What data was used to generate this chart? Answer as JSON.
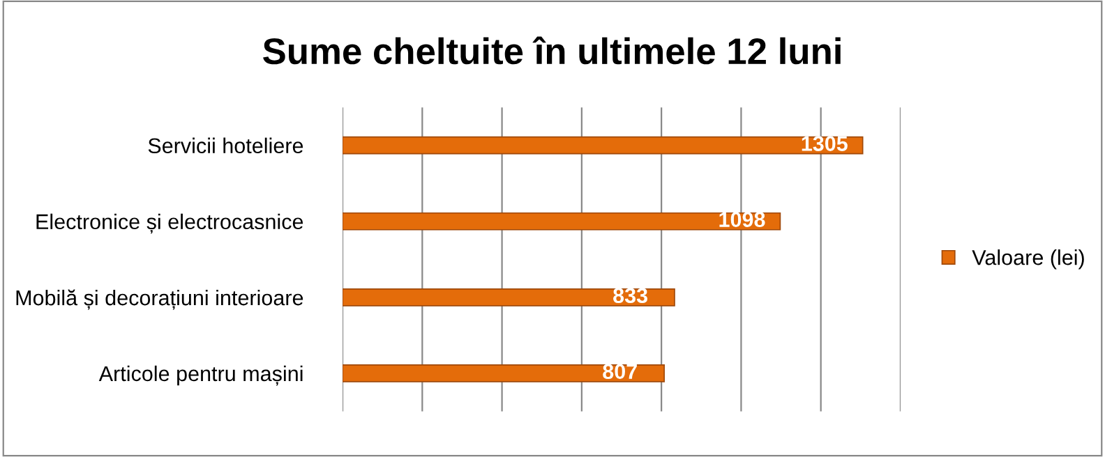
{
  "chart_data": {
    "type": "bar",
    "orientation": "horizontal",
    "title": "Sume cheltuite în ultimele 12 luni",
    "categories": [
      "Servicii hoteliere",
      "Electronice și electrocasnice",
      "Mobilă și decorațiuni interioare",
      "Articole pentru mașini"
    ],
    "series": [
      {
        "name": "Valoare (lei)",
        "color": "#e46c0a",
        "values": [
          1305,
          1098,
          833,
          807
        ]
      }
    ],
    "xlim": [
      0,
      1400
    ],
    "xticks": [
      {
        "value": 0,
        "label": null
      },
      {
        "value": 200,
        "label": null
      },
      {
        "value": 400,
        "label": null
      },
      {
        "value": 600,
        "label": null
      },
      {
        "value": 800,
        "label": null
      },
      {
        "value": 1000,
        "label": null
      },
      {
        "value": 1200,
        "label": null
      },
      {
        "value": 1400,
        "label": null
      }
    ],
    "tick_labels": "y",
    "grid": "x",
    "legend": "right",
    "data_labels": true
  }
}
